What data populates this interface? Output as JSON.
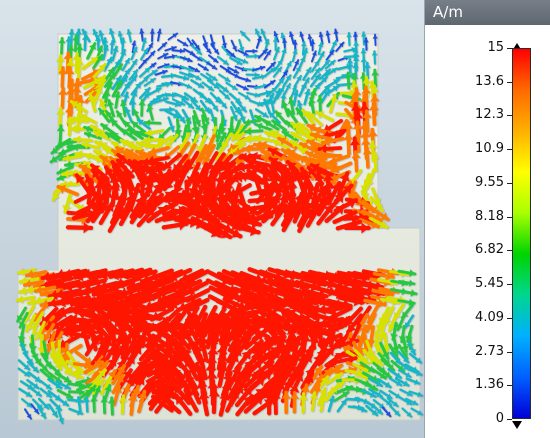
{
  "legend": {
    "unit": "A/m",
    "ticks": [
      "15",
      "13.6",
      "12.3",
      "10.9",
      "9.55",
      "8.18",
      "6.82",
      "5.45",
      "4.09",
      "2.73",
      "1.36",
      "0"
    ],
    "colors": [
      "#ff0000",
      "#ff6a00",
      "#ffb000",
      "#ffff00",
      "#a8ff00",
      "#00d400",
      "#00d68f",
      "#00b0ff",
      "#0060ff",
      "#0000d8"
    ]
  },
  "viewport": {
    "background_top": "#d9e3ea",
    "background_bottom": "#b8c8d4",
    "structure_color": "#e6e9dd",
    "field_colors": {
      "low": "#1f4fe0",
      "mid": "#18b6c8",
      "green": "#28c840",
      "yellow": "#d8e000",
      "orange": "#ff7a00",
      "red": "#ff1600"
    }
  }
}
